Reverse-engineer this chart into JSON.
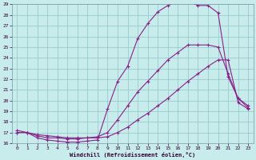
{
  "xlabel": "Windchill (Refroidissement éolien,°C)",
  "background_color": "#c8ecec",
  "grid_color": "#99cccc",
  "line_color": "#882288",
  "xlim": [
    -0.5,
    23.5
  ],
  "ylim": [
    16,
    29
  ],
  "yticks": [
    16,
    17,
    18,
    19,
    20,
    21,
    22,
    23,
    24,
    25,
    26,
    27,
    28,
    29
  ],
  "xticks": [
    0,
    1,
    2,
    3,
    4,
    5,
    6,
    7,
    8,
    9,
    10,
    11,
    12,
    13,
    14,
    15,
    16,
    17,
    18,
    19,
    20,
    21,
    22,
    23
  ],
  "series1_x": [
    0,
    1,
    2,
    3,
    4,
    5,
    6,
    7,
    8,
    9,
    10,
    11,
    12,
    13,
    14,
    15,
    16,
    17,
    18,
    19,
    20,
    21,
    22,
    23
  ],
  "series1_y": [
    17.0,
    17.0,
    16.5,
    16.3,
    16.2,
    16.1,
    16.1,
    16.2,
    16.3,
    19.2,
    21.8,
    23.2,
    25.8,
    27.2,
    28.3,
    28.9,
    29.3,
    29.3,
    28.9,
    28.9,
    28.2,
    22.2,
    20.2,
    19.3
  ],
  "series2_x": [
    0,
    1,
    2,
    3,
    4,
    5,
    6,
    7,
    8,
    9,
    10,
    11,
    12,
    13,
    14,
    15,
    16,
    17,
    18,
    19,
    20,
    21,
    22,
    23
  ],
  "series2_y": [
    17.0,
    17.0,
    16.7,
    16.5,
    16.5,
    16.4,
    16.4,
    16.5,
    16.6,
    17.0,
    18.2,
    19.5,
    20.8,
    21.8,
    22.8,
    23.8,
    24.5,
    25.2,
    25.2,
    25.2,
    25.0,
    22.5,
    20.2,
    19.5
  ],
  "series3_x": [
    0,
    1,
    2,
    3,
    4,
    5,
    6,
    7,
    8,
    9,
    10,
    11,
    12,
    13,
    14,
    15,
    16,
    17,
    18,
    19,
    20,
    21,
    22,
    23
  ],
  "series3_y": [
    17.2,
    17.0,
    16.8,
    16.7,
    16.6,
    16.5,
    16.5,
    16.5,
    16.5,
    16.6,
    17.0,
    17.5,
    18.2,
    18.8,
    19.5,
    20.2,
    21.0,
    21.8,
    22.5,
    23.2,
    23.8,
    23.8,
    19.8,
    19.2
  ]
}
